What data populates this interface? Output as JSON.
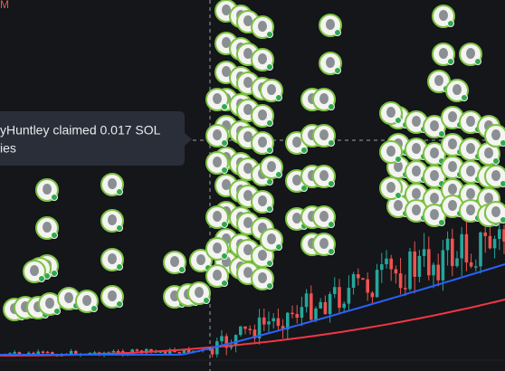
{
  "header": {
    "label": "M"
  },
  "tooltip": {
    "lines": [
      "yHuntley claimed 0.017 SOL",
      "ies"
    ]
  }
}
